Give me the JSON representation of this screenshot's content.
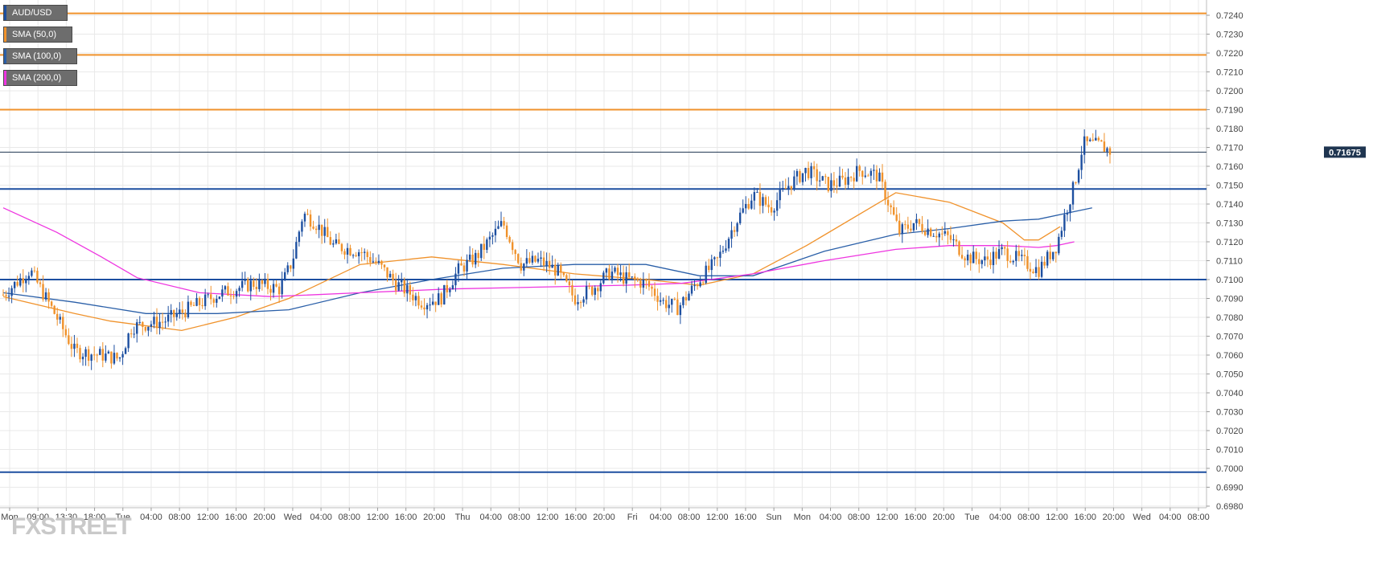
{
  "legend": {
    "pair": "AUD/USD",
    "sma50": "SMA (50,0)",
    "sma100": "SMA (100,0)",
    "sma200": "SMA (200,0)"
  },
  "current_price_label": "0.71675",
  "watermark": "FXSTREET",
  "colors": {
    "bull": "#1d4fa0",
    "bear": "#f0922b",
    "sma50": "#f0922b",
    "sma100": "#2a5fa8",
    "sma200": "#ee35e0",
    "resistance": "#f0922b",
    "support": "#1d4fa0",
    "grid": "#e9e9e9"
  },
  "chart_data": {
    "type": "candlestick",
    "title": "AUD/USD",
    "ylim": [
      0.698,
      0.7245
    ],
    "y_ticks": [
      "0.7240",
      "0.7230",
      "0.7220",
      "0.7210",
      "0.7200",
      "0.7190",
      "0.7180",
      "0.7170",
      "0.7160",
      "0.7150",
      "0.7140",
      "0.7130",
      "0.7120",
      "0.7110",
      "0.7100",
      "0.7090",
      "0.7080",
      "0.7070",
      "0.7060",
      "0.7050",
      "0.7040",
      "0.7030",
      "0.7020",
      "0.7010",
      "0.7000",
      "0.6990",
      "0.6980"
    ],
    "x_ticks": [
      "Mon",
      "09:00",
      "13:30",
      "18:00",
      "Tue",
      "04:00",
      "08:00",
      "12:00",
      "16:00",
      "20:00",
      "Wed",
      "04:00",
      "08:00",
      "12:00",
      "16:00",
      "20:00",
      "Thu",
      "04:00",
      "08:00",
      "12:00",
      "16:00",
      "20:00",
      "Fri",
      "04:00",
      "08:00",
      "12:00",
      "16:00",
      "Sun",
      "Mon",
      "04:00",
      "08:00",
      "12:00",
      "16:00",
      "20:00",
      "Tue",
      "04:00",
      "08:00",
      "12:00",
      "16:00",
      "20:00",
      "Wed",
      "04:00",
      "08:00"
    ],
    "levels": [
      {
        "kind": "resistance",
        "value": 0.7241
      },
      {
        "kind": "resistance",
        "value": 0.7219
      },
      {
        "kind": "resistance",
        "value": 0.719
      },
      {
        "kind": "current",
        "value": 0.71675
      },
      {
        "kind": "support",
        "value": 0.7148
      },
      {
        "kind": "support",
        "value": 0.71
      },
      {
        "kind": "support",
        "value": 0.6998
      }
    ],
    "close_path": [
      [
        0,
        0.7092
      ],
      [
        1.5,
        0.7105
      ],
      [
        3,
        0.708
      ],
      [
        4,
        0.7062
      ],
      [
        5.5,
        0.706
      ],
      [
        6.5,
        0.7058
      ],
      [
        7.2,
        0.7075
      ],
      [
        9,
        0.7078
      ],
      [
        10.5,
        0.7085
      ],
      [
        12,
        0.7092
      ],
      [
        14,
        0.7098
      ],
      [
        15.5,
        0.7095
      ],
      [
        16.2,
        0.711
      ],
      [
        16.8,
        0.7135
      ],
      [
        17.5,
        0.713
      ],
      [
        18.5,
        0.7118
      ],
      [
        20,
        0.7115
      ],
      [
        21,
        0.7108
      ],
      [
        22,
        0.7098
      ],
      [
        23.5,
        0.7088
      ],
      [
        24.5,
        0.709
      ],
      [
        25.5,
        0.7105
      ],
      [
        26.5,
        0.7112
      ],
      [
        28,
        0.713
      ],
      [
        29,
        0.7108
      ],
      [
        30,
        0.711
      ],
      [
        31,
        0.7105
      ],
      [
        32,
        0.709
      ],
      [
        33,
        0.7095
      ],
      [
        34,
        0.7104
      ],
      [
        35,
        0.71
      ],
      [
        36,
        0.7098
      ],
      [
        37,
        0.7088
      ],
      [
        37.8,
        0.7085
      ],
      [
        39,
        0.71
      ],
      [
        40,
        0.711
      ],
      [
        41,
        0.713
      ],
      [
        42,
        0.7145
      ],
      [
        43,
        0.7138
      ],
      [
        44,
        0.715
      ],
      [
        45,
        0.7158
      ],
      [
        46.2,
        0.715
      ],
      [
        47,
        0.7152
      ],
      [
        48,
        0.7158
      ],
      [
        49,
        0.7155
      ],
      [
        49.7,
        0.7138
      ],
      [
        50.2,
        0.7125
      ],
      [
        51,
        0.713
      ],
      [
        52,
        0.7126
      ],
      [
        53,
        0.7122
      ],
      [
        54,
        0.7112
      ],
      [
        55,
        0.711
      ],
      [
        56,
        0.7115
      ],
      [
        57,
        0.711
      ],
      [
        58,
        0.7105
      ],
      [
        59,
        0.7118
      ],
      [
        59.5,
        0.7135
      ],
      [
        60,
        0.715
      ],
      [
        60.5,
        0.7172
      ],
      [
        61.5,
        0.7171
      ],
      [
        62,
        0.7168
      ]
    ],
    "series": [
      {
        "name": "SMA (50,0)",
        "points": [
          [
            0,
            0.7091
          ],
          [
            4,
            0.7082
          ],
          [
            6,
            0.7078
          ],
          [
            10,
            0.7073
          ],
          [
            13,
            0.708
          ],
          [
            16,
            0.709
          ],
          [
            20,
            0.7108
          ],
          [
            24,
            0.7112
          ],
          [
            28,
            0.7108
          ],
          [
            32,
            0.7103
          ],
          [
            36,
            0.71
          ],
          [
            39,
            0.7097
          ],
          [
            42,
            0.7103
          ],
          [
            45,
            0.7118
          ],
          [
            50,
            0.7146
          ],
          [
            53,
            0.7141
          ],
          [
            56,
            0.713
          ],
          [
            57.2,
            0.7121
          ],
          [
            58,
            0.7121
          ],
          [
            59.2,
            0.7128
          ]
        ]
      },
      {
        "name": "SMA (100,0)",
        "points": [
          [
            0,
            0.7093
          ],
          [
            4,
            0.7088
          ],
          [
            8,
            0.7082
          ],
          [
            12,
            0.7082
          ],
          [
            16,
            0.7084
          ],
          [
            20,
            0.7093
          ],
          [
            24,
            0.71
          ],
          [
            28,
            0.7106
          ],
          [
            32,
            0.7108
          ],
          [
            36,
            0.7108
          ],
          [
            39,
            0.7102
          ],
          [
            42,
            0.7102
          ],
          [
            46,
            0.7115
          ],
          [
            50,
            0.7124
          ],
          [
            53,
            0.7127
          ],
          [
            56,
            0.7131
          ],
          [
            58,
            0.7132
          ],
          [
            60,
            0.7136
          ],
          [
            61,
            0.7138
          ]
        ]
      },
      {
        "name": "SMA (200,0)",
        "points": [
          [
            0,
            0.7138
          ],
          [
            3,
            0.7125
          ],
          [
            5.5,
            0.7112
          ],
          [
            7.5,
            0.7101
          ],
          [
            11,
            0.7093
          ],
          [
            15,
            0.7091
          ],
          [
            20,
            0.7093
          ],
          [
            25,
            0.7095
          ],
          [
            30,
            0.7096
          ],
          [
            35,
            0.7097
          ],
          [
            38,
            0.7098
          ],
          [
            42,
            0.7103
          ],
          [
            46,
            0.711
          ],
          [
            50,
            0.7116
          ],
          [
            53,
            0.7118
          ],
          [
            56,
            0.7118
          ],
          [
            58,
            0.7117
          ],
          [
            59,
            0.7118
          ],
          [
            60,
            0.712
          ]
        ]
      }
    ]
  }
}
